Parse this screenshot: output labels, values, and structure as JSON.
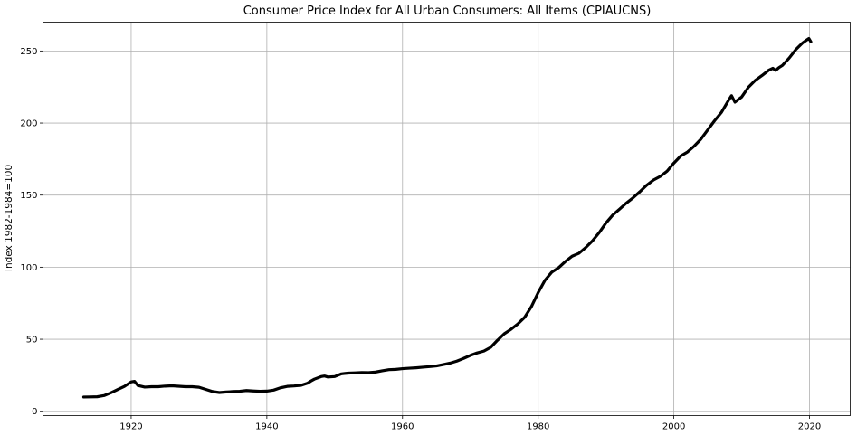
{
  "chart_data": {
    "type": "line",
    "title": "Consumer Price Index for All Urban Consumers: All Items (CPIAUCNS)",
    "xlabel": "",
    "ylabel": "Index 1982-1984=100",
    "xlim": [
      1907,
      2026
    ],
    "ylim": [
      -3,
      270
    ],
    "x_ticks": [
      1920,
      1940,
      1960,
      1980,
      2000,
      2020
    ],
    "y_ticks": [
      0,
      50,
      100,
      150,
      200,
      250
    ],
    "grid": true,
    "legend": "none",
    "series": [
      {
        "color": "#000000",
        "x": [
          1913,
          1914,
          1915,
          1916,
          1917,
          1918,
          1919,
          1920,
          1920.5,
          1921,
          1922,
          1923,
          1924,
          1925,
          1926,
          1927,
          1928,
          1929,
          1930,
          1931,
          1932,
          1933,
          1934,
          1935,
          1936,
          1937,
          1938,
          1939,
          1940,
          1941,
          1942,
          1943,
          1944,
          1945,
          1946,
          1946.5,
          1947,
          1948,
          1948.5,
          1949,
          1950,
          1951,
          1952,
          1953,
          1954,
          1955,
          1956,
          1957,
          1958,
          1959,
          1960,
          1961,
          1962,
          1963,
          1964,
          1965,
          1966,
          1967,
          1968,
          1969,
          1970,
          1971,
          1972,
          1973,
          1974,
          1975,
          1976,
          1977,
          1978,
          1979,
          1980,
          1981,
          1982,
          1983,
          1984,
          1985,
          1986,
          1987,
          1988,
          1989,
          1990,
          1991,
          1992,
          1993,
          1994,
          1995,
          1996,
          1997,
          1998,
          1999,
          2000,
          2001,
          2002,
          2003,
          2004,
          2005,
          2006,
          2007,
          2008,
          2008.5,
          2009,
          2010,
          2011,
          2012,
          2013,
          2014,
          2014.6,
          2015,
          2015.5,
          2016,
          2017,
          2018,
          2019,
          2019.9,
          2020.2
        ],
        "values": [
          9.9,
          10.0,
          10.1,
          10.9,
          12.8,
          15.1,
          17.3,
          20.4,
          20.8,
          17.9,
          16.8,
          17.1,
          17.1,
          17.5,
          17.7,
          17.4,
          17.1,
          17.1,
          16.7,
          15.2,
          13.7,
          13.0,
          13.4,
          13.7,
          13.9,
          14.4,
          14.1,
          13.9,
          14.0,
          14.7,
          16.3,
          17.3,
          17.6,
          18.0,
          19.5,
          21.0,
          22.3,
          24.1,
          24.5,
          23.8,
          24.1,
          26.0,
          26.5,
          26.7,
          26.9,
          26.8,
          27.2,
          28.1,
          28.9,
          29.1,
          29.6,
          29.9,
          30.2,
          30.6,
          31.0,
          31.5,
          32.4,
          33.4,
          34.8,
          36.7,
          38.8,
          40.5,
          41.8,
          44.4,
          49.3,
          53.8,
          56.9,
          60.6,
          65.2,
          72.6,
          82.4,
          90.9,
          96.5,
          99.6,
          103.9,
          107.6,
          109.6,
          113.6,
          118.3,
          124.0,
          130.7,
          136.2,
          140.3,
          144.5,
          148.2,
          152.4,
          156.9,
          160.5,
          163.0,
          166.6,
          172.2,
          177.1,
          179.9,
          184.0,
          188.9,
          195.3,
          201.6,
          207.3,
          215.3,
          219.0,
          214.5,
          218.1,
          224.9,
          229.6,
          233.0,
          236.7,
          238.0,
          236.5,
          238.5,
          240.0,
          245.1,
          251.1,
          255.7,
          258.7,
          256.4
        ]
      }
    ]
  }
}
